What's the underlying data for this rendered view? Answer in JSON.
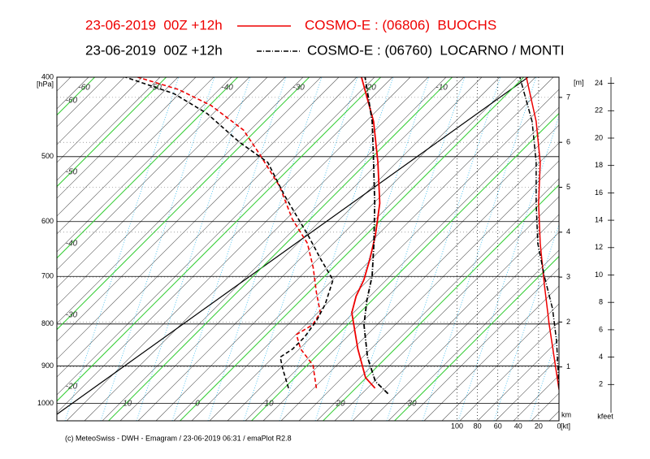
{
  "chart_data": {
    "type": "emagram",
    "run": "23-06-2019  00Z +12h",
    "footer": "(c) MeteoSwiss - DWH - Emagram / 23-06-2019 06:31 / emaPlot R2.8",
    "pressure_axis": {
      "label": "[hPa]",
      "log": true,
      "ylim": [
        1050,
        400
      ],
      "yticks": [
        400,
        500,
        600,
        700,
        800,
        900,
        1000
      ]
    },
    "temperature_axis": {
      "color": "#33cc33",
      "ticks": [
        -60,
        -50,
        -40,
        -30,
        -20,
        -10,
        0,
        10,
        20,
        30
      ]
    },
    "wind_axis": {
      "label": "[kt]",
      "xlim": [
        106,
        0
      ],
      "xticks": [
        100,
        80,
        60,
        40,
        20,
        0
      ]
    },
    "height_km": {
      "label": "[m]",
      "unit": "km",
      "ylim": [
        0,
        7.45
      ],
      "yticks": [
        1,
        2,
        3,
        4,
        5,
        6,
        7
      ]
    },
    "height_kfeet": {
      "label": "kfeet",
      "ylim": [
        0,
        24.45
      ],
      "yticks": [
        2,
        4,
        6,
        8,
        10,
        12,
        14,
        16,
        18,
        20,
        22,
        24
      ]
    },
    "series": [
      {
        "name": "COSMO-E : (06806)  BUOCHS",
        "color": "#ee0000",
        "style": "solid",
        "temperature": {
          "pressure": [
            958,
            930,
            858,
            775,
            740,
            707,
            668,
            624,
            570,
            508,
            453,
            400
          ],
          "values": [
            22.7,
            19.9,
            14.8,
            8.9,
            7.2,
            6.0,
            4.0,
            1.4,
            -2.5,
            -8.5,
            -14.8,
            -22.7
          ]
        },
        "dewpoint": {
          "pressure": [
            958,
            898,
            858,
            824,
            802,
            775,
            732,
            683,
            638,
            596,
            544,
            497,
            464,
            433,
            414,
            400
          ],
          "values": [
            14.5,
            10.8,
            6.8,
            4.2,
            5.1,
            4.5,
            1.1,
            -2.8,
            -7.0,
            -12.5,
            -18.8,
            -26.1,
            -31.8,
            -39.8,
            -46.6,
            -54.0
          ]
        },
        "wind": {
          "pressure": [
            962,
            878,
            802,
            715,
            638,
            570,
            508,
            453,
            400
          ],
          "values": [
            0,
            4.8,
            9.6,
            14.4,
            18.4,
            20,
            18.4,
            22.4,
            32
          ]
        }
      },
      {
        "name": "COSMO-E : (06760)  LOCARNO / MONTI",
        "color": "#000000",
        "style": "dashdot",
        "temperature": {
          "pressure": [
            973,
            940,
            878,
            802,
            749,
            699,
            638,
            570,
            508,
            453,
            400
          ],
          "values": [
            25.3,
            21.8,
            17.3,
            12.3,
            9.3,
            6.6,
            2.3,
            -3.2,
            -9.1,
            -15.0,
            -22.2
          ]
        },
        "dewpoint": {
          "pressure": [
            958,
            909,
            878,
            858,
            830,
            793,
            757,
            707,
            668,
            624,
            557,
            508,
            480,
            443,
            419,
            400
          ],
          "values": [
            10.6,
            7.2,
            5.1,
            5.7,
            5.7,
            5.1,
            4.0,
            1.7,
            -2.8,
            -8.0,
            -17.0,
            -23.9,
            -30.7,
            -39.2,
            -46.6,
            -55.7
          ]
        },
        "wind": {
          "pressure": [
            958,
            839,
            766,
            699,
            638,
            570,
            508,
            453,
            400
          ],
          "values": [
            0,
            2.4,
            6.4,
            14.4,
            20.8,
            22.4,
            22.4,
            26.4,
            38.4
          ]
        }
      }
    ]
  }
}
